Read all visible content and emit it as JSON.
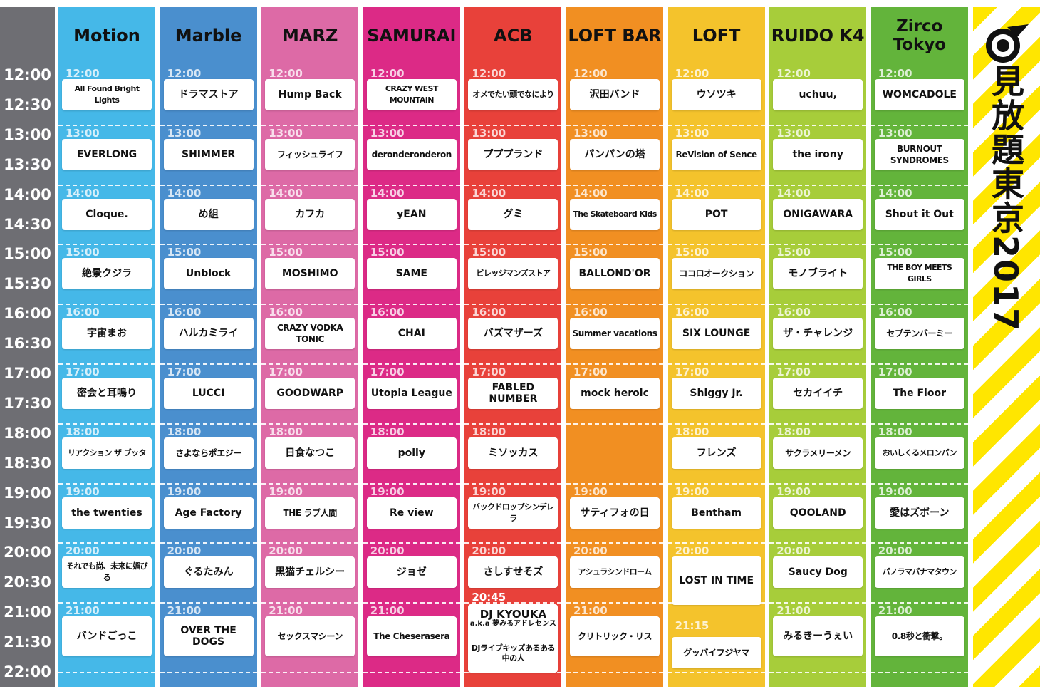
{
  "event_title": "見放題東京2017",
  "time_labels": [
    "12:00",
    "12:30",
    "13:00",
    "13:30",
    "14:00",
    "14:30",
    "15:00",
    "15:30",
    "16:00",
    "16:30",
    "17:00",
    "17:30",
    "18:00",
    "18:30",
    "19:00",
    "19:30",
    "20:00",
    "20:30",
    "21:00",
    "21:30",
    "22:00"
  ],
  "colors": {
    "time_axis": "#6e6e73",
    "banner_stripe": "#ffe600",
    "stages": [
      "#45b8e8",
      "#4a8fce",
      "#dd6aa6",
      "#dc2a86",
      "#e8413a",
      "#f18f22",
      "#f4c32c",
      "#a7cd3a",
      "#63b43b"
    ]
  },
  "stages": [
    {
      "name": "Motion",
      "slots": [
        {
          "time": "12:00",
          "act": "All Found Bright Lights"
        },
        {
          "time": "13:00",
          "act": "EVERLONG"
        },
        {
          "time": "14:00",
          "act": "Cloque."
        },
        {
          "time": "15:00",
          "act": "絶景クジラ"
        },
        {
          "time": "16:00",
          "act": "宇宙まお"
        },
        {
          "time": "17:00",
          "act": "密会と耳鳴り"
        },
        {
          "time": "18:00",
          "act": "リアクション ザ ブッタ"
        },
        {
          "time": "19:00",
          "act": "the twenties"
        },
        {
          "time": "20:00",
          "act": "それでも尚、未来に媚びる"
        },
        {
          "time": "21:00",
          "act": "バンドごっこ"
        }
      ]
    },
    {
      "name": "Marble",
      "slots": [
        {
          "time": "12:00",
          "act": "ドラマストア"
        },
        {
          "time": "13:00",
          "act": "SHIMMER"
        },
        {
          "time": "14:00",
          "act": "め組"
        },
        {
          "time": "15:00",
          "act": "Unblock"
        },
        {
          "time": "16:00",
          "act": "ハルカミライ"
        },
        {
          "time": "17:00",
          "act": "LUCCI"
        },
        {
          "time": "18:00",
          "act": "さよならポエジー"
        },
        {
          "time": "19:00",
          "act": "Age Factory"
        },
        {
          "time": "20:00",
          "act": "ぐるたみん"
        },
        {
          "time": "21:00",
          "act": "OVER THE DOGS"
        }
      ]
    },
    {
      "name": "MARZ",
      "slots": [
        {
          "time": "12:00",
          "act": "Hump Back"
        },
        {
          "time": "13:00",
          "act": "フィッシュライフ"
        },
        {
          "time": "14:00",
          "act": "カフカ"
        },
        {
          "time": "15:00",
          "act": "MOSHIMO"
        },
        {
          "time": "16:00",
          "act": "CRAZY VODKA TONIC"
        },
        {
          "time": "17:00",
          "act": "GOODWARP"
        },
        {
          "time": "18:00",
          "act": "日食なつこ"
        },
        {
          "time": "19:00",
          "act": "THE ラブ人間"
        },
        {
          "time": "20:00",
          "act": "黒猫チェルシー"
        },
        {
          "time": "21:00",
          "act": "セックスマシーン"
        }
      ]
    },
    {
      "name": "SAMURAI",
      "slots": [
        {
          "time": "12:00",
          "act": "CRAZY WEST MOUNTAIN"
        },
        {
          "time": "13:00",
          "act": "deronderonderon"
        },
        {
          "time": "14:00",
          "act": "yEAN"
        },
        {
          "time": "15:00",
          "act": "SAME"
        },
        {
          "time": "16:00",
          "act": "CHAI"
        },
        {
          "time": "17:00",
          "act": "Utopia League"
        },
        {
          "time": "18:00",
          "act": "polly"
        },
        {
          "time": "19:00",
          "act": "Re view"
        },
        {
          "time": "20:00",
          "act": "ジョゼ"
        },
        {
          "time": "21:00",
          "act": "The Cheserasera"
        }
      ]
    },
    {
      "name": "ACB",
      "slots": [
        {
          "time": "12:00",
          "act": "オメでたい頭でなにより"
        },
        {
          "time": "13:00",
          "act": "プププランド"
        },
        {
          "time": "14:00",
          "act": "グミ"
        },
        {
          "time": "15:00",
          "act": "ビレッジマンズストア"
        },
        {
          "time": "16:00",
          "act": "バズマザーズ"
        },
        {
          "time": "17:00",
          "act": "FABLED NUMBER"
        },
        {
          "time": "18:00",
          "act": "ミソッカス"
        },
        {
          "time": "19:00",
          "act": "バックドロップシンデレラ"
        },
        {
          "time": "20:00",
          "act": "さしすせそズ"
        }
      ],
      "dj_slot": {
        "time": "20:45",
        "name": "DJ KYOUKA",
        "sub": "a.k.a 夢みるアドレセンス",
        "second": "DJライブキッズあるある中の人"
      }
    },
    {
      "name": "LOFT BAR",
      "slots": [
        {
          "time": "12:00",
          "act": "沢田バンド"
        },
        {
          "time": "13:00",
          "act": "パンパンの塔"
        },
        {
          "time": "14:00",
          "act": "The Skateboard Kids"
        },
        {
          "time": "15:00",
          "act": "BALLOND'OR"
        },
        {
          "time": "16:00",
          "act": "Summer vacations"
        },
        {
          "time": "17:00",
          "act": "mock heroic"
        },
        {
          "time": "19:00",
          "act": "サティフォの日"
        },
        {
          "time": "20:00",
          "act": "アシュラシンドローム"
        },
        {
          "time": "21:00",
          "act": "クリトリック・リス"
        }
      ]
    },
    {
      "name": "LOFT",
      "slots": [
        {
          "time": "12:00",
          "act": "ウソツキ"
        },
        {
          "time": "13:00",
          "act": "ReVision of Sence"
        },
        {
          "time": "14:00",
          "act": "POT"
        },
        {
          "time": "15:00",
          "act": "ココロオークション"
        },
        {
          "time": "16:00",
          "act": "SIX LOUNGE"
        },
        {
          "time": "17:00",
          "act": "Shiggy Jr."
        },
        {
          "time": "18:00",
          "act": "フレンズ"
        },
        {
          "time": "19:00",
          "act": "Bentham"
        },
        {
          "time": "20:00",
          "act": "LOST IN TIME"
        },
        {
          "time": "21:15",
          "act": "グッバイフジヤマ"
        }
      ]
    },
    {
      "name": "RUIDO K4",
      "slots": [
        {
          "time": "12:00",
          "act": "uchuu,"
        },
        {
          "time": "13:00",
          "act": "the irony"
        },
        {
          "time": "14:00",
          "act": "ONIGAWARA"
        },
        {
          "time": "15:00",
          "act": "モノブライト"
        },
        {
          "time": "16:00",
          "act": "ザ・チャレンジ"
        },
        {
          "time": "17:00",
          "act": "セカイイチ"
        },
        {
          "time": "18:00",
          "act": "サクラメリーメン"
        },
        {
          "time": "19:00",
          "act": "QOOLAND"
        },
        {
          "time": "20:00",
          "act": "Saucy Dog"
        },
        {
          "time": "21:00",
          "act": "みるきーうぇい"
        }
      ]
    },
    {
      "name": "Zirco\nTokyo",
      "slots": [
        {
          "time": "12:00",
          "act": "WOMCADOLE"
        },
        {
          "time": "13:00",
          "act": "BURNOUT SYNDROMES"
        },
        {
          "time": "14:00",
          "act": "Shout it Out"
        },
        {
          "time": "15:00",
          "act": "THE BOY MEETS GIRLS"
        },
        {
          "time": "16:00",
          "act": "セプテンバーミー"
        },
        {
          "time": "17:00",
          "act": "The Floor"
        },
        {
          "time": "18:00",
          "act": "おいしくるメロンパン"
        },
        {
          "time": "19:00",
          "act": "愛はズボーン"
        },
        {
          "time": "20:00",
          "act": "パノラマパナマタウン"
        },
        {
          "time": "21:00",
          "act": "0.8秒と衝撃。"
        }
      ]
    }
  ]
}
